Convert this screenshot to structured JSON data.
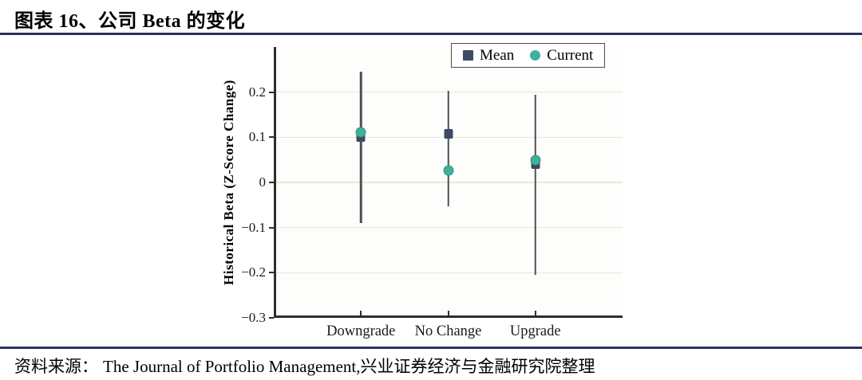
{
  "header": {
    "title": "图表 16、公司 Beta 的变化"
  },
  "footer": {
    "source_label": "资料来源：",
    "source_text": "The Journal of Portfolio Management,兴业证券经济与金融研究院整理"
  },
  "colors": {
    "rule_navy": "#2d3263",
    "axis": "#2e2e2e",
    "grid": "#e9e6df",
    "error_bar": "#4f4f4f",
    "mean": "#3c4a62",
    "current": "#3fb09c",
    "current_edge": "#2f9284",
    "tick_text": "#1a1a1a"
  },
  "chart_data": {
    "type": "scatter",
    "title": "",
    "xlabel": "",
    "ylabel": "Historical Beta (Z-Score Change)",
    "categories": [
      "Downgrade",
      "No Change",
      "Upgrade"
    ],
    "ylim": [
      -0.3,
      0.3
    ],
    "yticks": [
      0.2,
      0.1,
      0,
      -0.1,
      -0.2,
      -0.3
    ],
    "ytick_labels": [
      "0.2",
      "0.1",
      "0",
      "−0.1",
      "−0.2",
      "−0.3"
    ],
    "grid": true,
    "legend_position": "top-right-inside",
    "series": [
      {
        "name": "Mean",
        "marker": "square",
        "values": [
          0.1,
          0.107,
          0.04
        ]
      },
      {
        "name": "Current",
        "marker": "circle",
        "values": [
          0.112,
          0.026,
          0.05
        ]
      }
    ],
    "error_bars": {
      "low": [
        -0.09,
        -0.053,
        -0.205
      ],
      "high": [
        0.245,
        0.203,
        0.195
      ]
    }
  }
}
